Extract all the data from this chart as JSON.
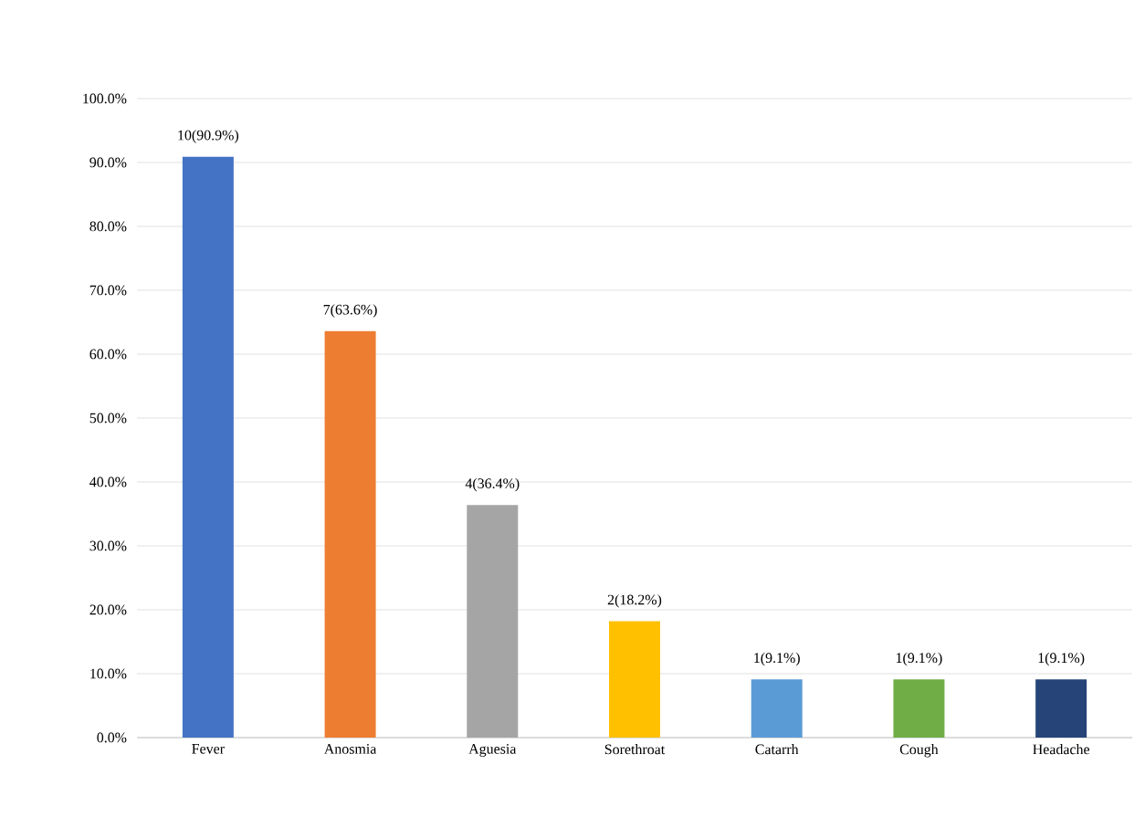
{
  "chart_data": {
    "type": "bar",
    "categories": [
      "Fever",
      "Anosmia",
      "Aguesia",
      "Sorethroat",
      "Catarrh",
      "Cough",
      "Headache"
    ],
    "values": [
      90.9,
      63.6,
      36.4,
      18.2,
      9.1,
      9.1,
      9.1
    ],
    "colors": [
      "#4472c4",
      "#ed7d31",
      "#a5a5a5",
      "#ffc000",
      "#5b9bd5",
      "#70ad47",
      "#264478"
    ],
    "value_labels": [
      "10(90.9%)",
      "7(63.6%)",
      "4(36.4%)",
      "2(18.2%)",
      "1(9.1%)",
      "1(9.1%)",
      "1(9.1%)"
    ],
    "ylim": [
      0,
      100
    ],
    "yticks": [
      {
        "value": 0,
        "label": "0.0%"
      },
      {
        "value": 10,
        "label": "10.0%"
      },
      {
        "value": 20,
        "label": "20.0%"
      },
      {
        "value": 30,
        "label": "30.0%"
      },
      {
        "value": 40,
        "label": "40.0%"
      },
      {
        "value": 50,
        "label": "50.0%"
      },
      {
        "value": 60,
        "label": "60.0%"
      },
      {
        "value": 70,
        "label": "70.0%"
      },
      {
        "value": 80,
        "label": "80.0%"
      },
      {
        "value": 90,
        "label": "90.0%"
      },
      {
        "value": 100,
        "label": "100.0%"
      }
    ],
    "grid": "y"
  }
}
